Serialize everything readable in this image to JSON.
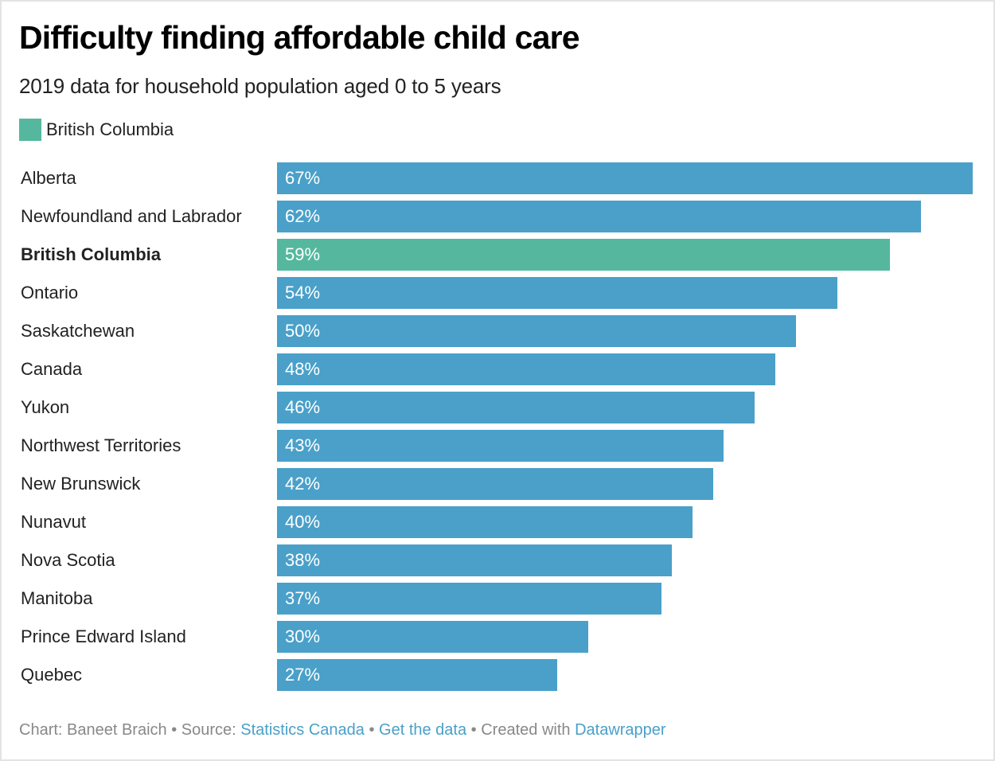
{
  "header": {
    "title": "Difficulty finding affordable child care",
    "subtitle": "2019 data for household population aged 0 to 5 years"
  },
  "legend": {
    "label": "British Columbia",
    "color": "#55b89e"
  },
  "colors": {
    "default_bar": "#4aa0c9",
    "highlight_bar": "#55b89e",
    "link": "#4aa0c9"
  },
  "chart_data": {
    "type": "bar",
    "orientation": "horizontal",
    "title": "Difficulty finding affordable child care",
    "subtitle": "2019 data for household population aged 0 to 5 years",
    "xlabel": "",
    "ylabel": "",
    "value_suffix": "%",
    "xlim": [
      0,
      67
    ],
    "grid": false,
    "legend": {
      "entries": [
        "British Columbia"
      ],
      "placement": "top-left"
    },
    "highlight": "British Columbia",
    "categories": [
      "Alberta",
      "Newfoundland and Labrador",
      "British Columbia",
      "Ontario",
      "Saskatchewan",
      "Canada",
      "Yukon",
      "Northwest Territories",
      "New Brunswick",
      "Nunavut",
      "Nova Scotia",
      "Manitoba",
      "Prince Edward Island",
      "Quebec"
    ],
    "values": [
      67,
      62,
      59,
      54,
      50,
      48,
      46,
      43,
      42,
      40,
      38,
      37,
      30,
      27
    ]
  },
  "footer": {
    "chart_prefix": "Chart: Baneet Braich",
    "sep": " • ",
    "source_prefix": "Source: ",
    "source_link": "Statistics Canada",
    "get_data_link": "Get the data",
    "created_prefix": "Created with ",
    "created_link": "Datawrapper"
  }
}
